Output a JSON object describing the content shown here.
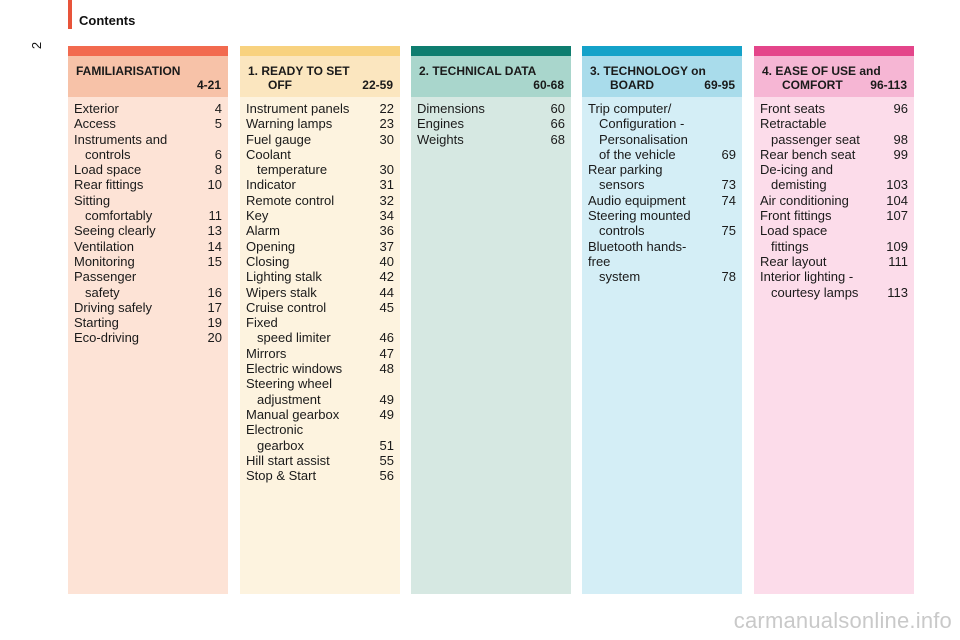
{
  "header": {
    "title": "Contents",
    "page_number": "2"
  },
  "colors": {
    "familiarisation": {
      "strip": "#f26a4f",
      "head": "#f7c2a8",
      "body": "#fde3d6"
    },
    "ready": {
      "strip": "#f8d27f",
      "head": "#fbe6bf",
      "body": "#fdf3df"
    },
    "technical": {
      "strip": "#0e7d6f",
      "head": "#a9d6cc",
      "body": "#d6e8e2"
    },
    "technology": {
      "strip": "#14a2c9",
      "head": "#a9dceb",
      "body": "#d4eef6"
    },
    "ease": {
      "strip": "#e4458a",
      "head": "#f6b6d4",
      "body": "#fcdcea"
    }
  },
  "columns": [
    {
      "id": "familiarisation",
      "title_line1": "FAMILIARISATION",
      "title_line2": "",
      "pages": "4-21",
      "entries": [
        {
          "lines": [
            "Exterior"
          ],
          "page": "4"
        },
        {
          "lines": [
            "Access"
          ],
          "page": "5"
        },
        {
          "lines": [
            "Instruments and",
            "controls"
          ],
          "page": "6"
        },
        {
          "lines": [
            "Load space"
          ],
          "page": "8"
        },
        {
          "lines": [
            "Rear fittings"
          ],
          "page": "10"
        },
        {
          "lines": [
            "Sitting",
            "comfortably"
          ],
          "page": "11"
        },
        {
          "lines": [
            "Seeing clearly"
          ],
          "page": "13"
        },
        {
          "lines": [
            "Ventilation"
          ],
          "page": "14"
        },
        {
          "lines": [
            "Monitoring"
          ],
          "page": "15"
        },
        {
          "lines": [
            "Passenger",
            "safety"
          ],
          "page": "16"
        },
        {
          "lines": [
            "Driving safely"
          ],
          "page": "17"
        },
        {
          "lines": [
            "Starting"
          ],
          "page": "19"
        },
        {
          "lines": [
            "Eco-driving"
          ],
          "page": "20"
        }
      ]
    },
    {
      "id": "ready",
      "title_line1": "1. READY TO SET",
      "title_line2": "OFF",
      "pages": "22-59",
      "entries": [
        {
          "lines": [
            "Instrument panels"
          ],
          "page": "22"
        },
        {
          "lines": [
            "Warning lamps"
          ],
          "page": "23"
        },
        {
          "lines": [
            "Fuel gauge"
          ],
          "page": "30"
        },
        {
          "lines": [
            "Coolant",
            "temperature"
          ],
          "page": "30"
        },
        {
          "lines": [
            "Indicator"
          ],
          "page": "31"
        },
        {
          "lines": [
            "Remote control"
          ],
          "page": "32"
        },
        {
          "lines": [
            "Key"
          ],
          "page": "34"
        },
        {
          "lines": [
            "Alarm"
          ],
          "page": "36"
        },
        {
          "lines": [
            "Opening"
          ],
          "page": "37"
        },
        {
          "lines": [
            "Closing"
          ],
          "page": "40"
        },
        {
          "lines": [
            "Lighting stalk"
          ],
          "page": "42"
        },
        {
          "lines": [
            "Wipers stalk"
          ],
          "page": "44"
        },
        {
          "lines": [
            "Cruise control"
          ],
          "page": "45"
        },
        {
          "lines": [
            "Fixed",
            "speed limiter"
          ],
          "page": "46"
        },
        {
          "lines": [
            "Mirrors"
          ],
          "page": "47"
        },
        {
          "lines": [
            "Electric windows"
          ],
          "page": "48"
        },
        {
          "lines": [
            "Steering wheel",
            "adjustment"
          ],
          "page": "49"
        },
        {
          "lines": [
            "Manual gearbox"
          ],
          "page": "49"
        },
        {
          "lines": [
            "Electronic",
            "gearbox"
          ],
          "page": "51"
        },
        {
          "lines": [
            "Hill start assist"
          ],
          "page": "55"
        },
        {
          "lines": [
            "Stop & Start"
          ],
          "page": "56"
        }
      ]
    },
    {
      "id": "technical",
      "title_line1": "2. TECHNICAL DATA",
      "title_line2": "",
      "pages": "60-68",
      "entries": [
        {
          "lines": [
            "Dimensions"
          ],
          "page": "60"
        },
        {
          "lines": [
            "Engines"
          ],
          "page": "66"
        },
        {
          "lines": [
            "Weights"
          ],
          "page": "68"
        }
      ]
    },
    {
      "id": "technology",
      "title_line1": "3. TECHNOLOGY on",
      "title_line2": "BOARD",
      "pages": "69-95",
      "entries": [
        {
          "lines": [
            "Trip computer/",
            "Configuration -",
            "Personalisation",
            "of the vehicle"
          ],
          "page": "69"
        },
        {
          "lines": [
            "Rear parking",
            "sensors"
          ],
          "page": "73"
        },
        {
          "lines": [
            "Audio equipment"
          ],
          "page": "74"
        },
        {
          "lines": [
            "Steering mounted",
            "controls"
          ],
          "page": "75"
        },
        {
          "lines": [
            "Bluetooth hands-free",
            "system"
          ],
          "page": "78"
        }
      ]
    },
    {
      "id": "ease",
      "title_line1": "4. EASE OF USE and",
      "title_line2": "COMFORT",
      "pages": "96-113",
      "entries": [
        {
          "lines": [
            "Front seats"
          ],
          "page": "96"
        },
        {
          "lines": [
            "Retractable",
            "passenger seat"
          ],
          "page": "98"
        },
        {
          "lines": [
            "Rear bench seat"
          ],
          "page": "99"
        },
        {
          "lines": [
            "De-icing and",
            "demisting"
          ],
          "page": "103"
        },
        {
          "lines": [
            "Air conditioning"
          ],
          "page": "104"
        },
        {
          "lines": [
            "Front fittings"
          ],
          "page": "107"
        },
        {
          "lines": [
            "Load space",
            "fittings"
          ],
          "page": "109"
        },
        {
          "lines": [
            "Rear layout"
          ],
          "page": "111"
        },
        {
          "lines": [
            "Interior lighting -",
            "courtesy lamps"
          ],
          "page": "113"
        }
      ]
    }
  ],
  "watermark": "carmanualsonline.info"
}
